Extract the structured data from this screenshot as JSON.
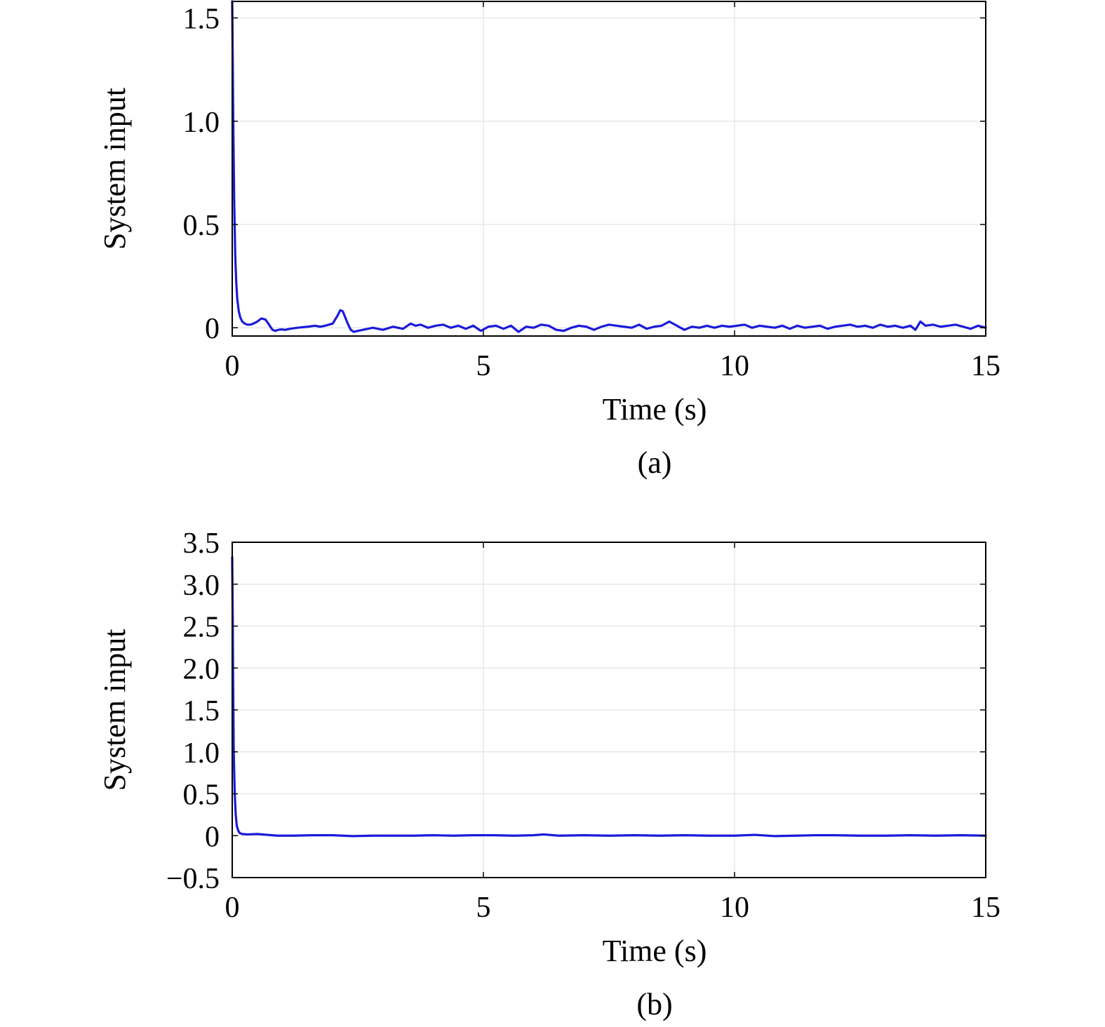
{
  "colors": {
    "series": "#1a1adb",
    "grid": "#e3e3e3",
    "frame": "#000000"
  },
  "chart_data": [
    {
      "type": "line",
      "caption": "(a)",
      "xlabel": "Time (s)",
      "ylabel": "System input",
      "xlim": [
        0,
        15
      ],
      "ylim": [
        -0.04,
        1.58
      ],
      "xticks": [
        0,
        5,
        10,
        15
      ],
      "xtick_labels": [
        "0",
        "5",
        "10",
        "15"
      ],
      "yticks": [
        0,
        0.5,
        1.0,
        1.5
      ],
      "ytick_labels": [
        "0",
        "0.5",
        "1.0",
        "1.5"
      ],
      "grid": true,
      "legend": "none",
      "series": [
        {
          "color": "#1a1adb",
          "x": [
            0,
            0.01,
            0.02,
            0.04,
            0.06,
            0.08,
            0.1,
            0.13,
            0.16,
            0.2,
            0.25,
            0.3,
            0.36,
            0.42,
            0.5,
            0.58,
            0.66,
            0.72,
            0.76,
            0.8,
            0.86,
            0.92,
            0.98,
            1.05,
            1.15,
            1.3,
            1.5,
            1.65,
            1.75,
            1.85,
            2.0,
            2.1,
            2.15,
            2.2,
            2.25,
            2.3,
            2.36,
            2.42,
            2.5,
            2.6,
            2.8,
            3.0,
            3.2,
            3.4,
            3.55,
            3.65,
            3.75,
            3.9,
            4.05,
            4.2,
            4.35,
            4.5,
            4.65,
            4.8,
            4.95,
            5.1,
            5.25,
            5.4,
            5.55,
            5.7,
            5.85,
            6.0,
            6.15,
            6.3,
            6.45,
            6.6,
            6.75,
            6.9,
            7.05,
            7.2,
            7.35,
            7.5,
            7.65,
            7.8,
            7.95,
            8.1,
            8.25,
            8.4,
            8.55,
            8.7,
            8.85,
            9.0,
            9.15,
            9.3,
            9.45,
            9.6,
            9.75,
            9.9,
            10.05,
            10.2,
            10.35,
            10.5,
            10.65,
            10.8,
            10.95,
            11.1,
            11.25,
            11.4,
            11.55,
            11.7,
            11.85,
            12.0,
            12.15,
            12.3,
            12.45,
            12.6,
            12.75,
            12.9,
            13.05,
            13.2,
            13.35,
            13.5,
            13.6,
            13.7,
            13.8,
            13.95,
            14.1,
            14.25,
            14.4,
            14.55,
            14.7,
            14.85,
            15.0
          ],
          "y": [
            1.58,
            1.3,
            1.0,
            0.6,
            0.35,
            0.22,
            0.14,
            0.08,
            0.05,
            0.03,
            0.02,
            0.015,
            0.015,
            0.02,
            0.03,
            0.045,
            0.04,
            0.02,
            0.005,
            -0.01,
            -0.015,
            -0.01,
            -0.008,
            -0.01,
            -0.005,
            0.0,
            0.005,
            0.01,
            0.005,
            0.01,
            0.02,
            0.06,
            0.085,
            0.08,
            0.05,
            0.02,
            -0.01,
            -0.02,
            -0.015,
            -0.01,
            0.0,
            -0.01,
            0.005,
            -0.005,
            0.02,
            0.01,
            0.015,
            0.0,
            0.01,
            0.015,
            0.0,
            0.01,
            -0.005,
            0.01,
            -0.015,
            0.005,
            0.01,
            -0.005,
            0.01,
            -0.02,
            0.005,
            0.0,
            0.015,
            0.01,
            -0.01,
            -0.015,
            0.0,
            0.01,
            0.005,
            -0.01,
            0.005,
            0.015,
            0.01,
            0.005,
            0.0,
            0.015,
            -0.005,
            0.005,
            0.01,
            0.03,
            0.01,
            -0.01,
            0.005,
            0.0,
            0.01,
            0.0,
            0.01,
            0.005,
            0.01,
            0.015,
            0.0,
            0.01,
            0.005,
            0.0,
            0.01,
            -0.005,
            0.01,
            0.0,
            0.005,
            0.01,
            -0.005,
            0.005,
            0.01,
            0.015,
            0.005,
            0.01,
            0.0,
            0.015,
            0.005,
            0.01,
            0.0,
            0.01,
            -0.01,
            0.03,
            0.01,
            0.015,
            0.005,
            0.01,
            0.015,
            0.005,
            -0.005,
            0.01,
            0.0
          ]
        }
      ]
    },
    {
      "type": "line",
      "caption": "(b)",
      "xlabel": "Time (s)",
      "ylabel": "System input",
      "xlim": [
        0,
        15
      ],
      "ylim": [
        -0.5,
        3.5
      ],
      "xticks": [
        0,
        5,
        10,
        15
      ],
      "xtick_labels": [
        "0",
        "5",
        "10",
        "15"
      ],
      "yticks": [
        -0.5,
        0,
        0.5,
        1.0,
        1.5,
        2.0,
        2.5,
        3.0,
        3.5
      ],
      "ytick_labels": [
        "−0.5",
        "0",
        "0.5",
        "1.0",
        "1.5",
        "2.0",
        "2.5",
        "3.0",
        "3.5"
      ],
      "grid": true,
      "legend": "none",
      "series": [
        {
          "color": "#1a1adb",
          "x": [
            0,
            0.01,
            0.02,
            0.03,
            0.05,
            0.07,
            0.09,
            0.12,
            0.15,
            0.2,
            0.3,
            0.5,
            0.7,
            0.9,
            1.2,
            1.6,
            2.0,
            2.4,
            2.8,
            3.2,
            3.6,
            4.0,
            4.4,
            4.8,
            5.2,
            5.6,
            6.0,
            6.2,
            6.5,
            7.0,
            7.5,
            8.0,
            8.5,
            9.0,
            9.5,
            10.0,
            10.4,
            10.8,
            11.2,
            11.6,
            12.0,
            12.5,
            13.0,
            13.5,
            14.0,
            14.5,
            15.0
          ],
          "y": [
            3.32,
            2.6,
            1.7,
            1.0,
            0.5,
            0.25,
            0.12,
            0.06,
            0.03,
            0.02,
            0.015,
            0.02,
            0.01,
            0.0,
            0.0,
            0.005,
            0.005,
            -0.005,
            0.0,
            0.0,
            0.0,
            0.005,
            0.0,
            0.005,
            0.005,
            0.0,
            0.005,
            0.015,
            0.0,
            0.005,
            0.0,
            0.005,
            0.0,
            0.005,
            0.0,
            0.0,
            0.01,
            -0.005,
            0.0,
            0.005,
            0.005,
            0.0,
            0.0,
            0.005,
            0.0,
            0.005,
            0.0
          ]
        }
      ]
    }
  ]
}
